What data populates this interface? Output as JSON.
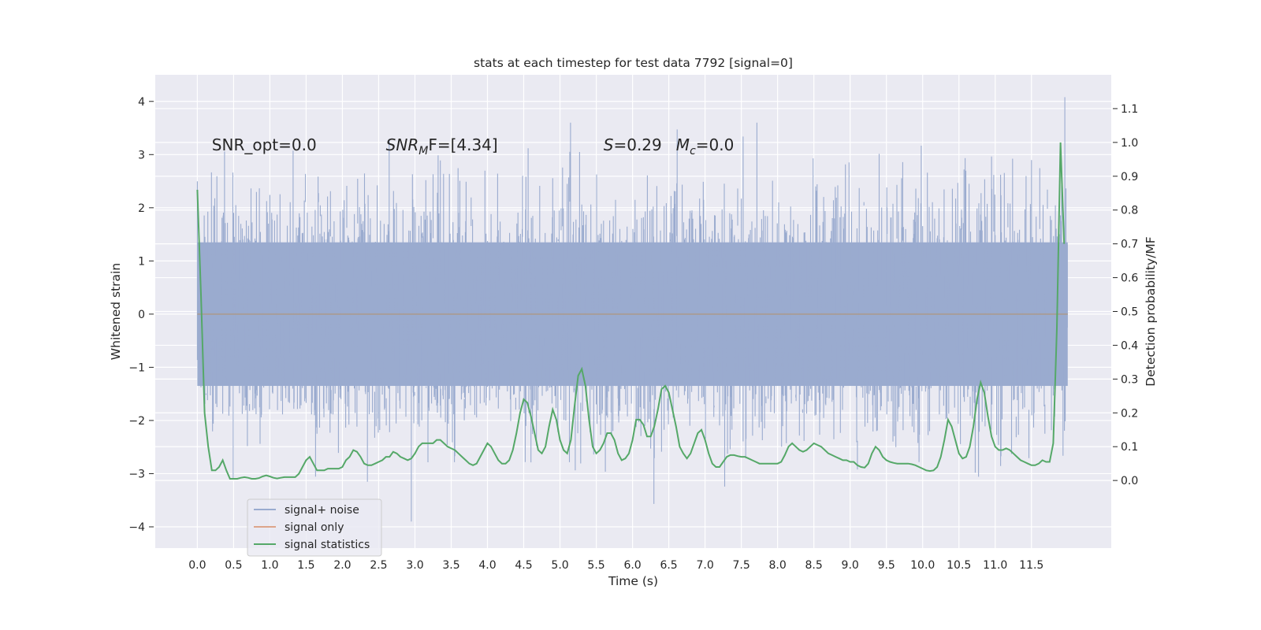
{
  "chart_data": {
    "type": "line",
    "title": "stats at each timestep for test data 7792 [signal=0]",
    "xlabel": "Time (s)",
    "ylabel": "Whitened strain",
    "ylabel_right": "Detection probability/MF",
    "xlim": [
      -0.58,
      12.6
    ],
    "ylim": [
      -4.4,
      4.5
    ],
    "ylim_right": [
      -0.2,
      1.2
    ],
    "x_ticks": [
      "0.0",
      "0.5",
      "1.0",
      "1.5",
      "2.0",
      "2.5",
      "3.0",
      "3.5",
      "4.0",
      "4.5",
      "5.0",
      "5.5",
      "6.0",
      "6.5",
      "7.0",
      "7.5",
      "8.0",
      "8.5",
      "9.0",
      "9.5",
      "10.0",
      "10.5",
      "11.0",
      "11.5"
    ],
    "y_ticks": [
      "4",
      "3",
      "2",
      "1",
      "0",
      "−1",
      "−2",
      "−3",
      "−4"
    ],
    "y_ticks_right": [
      "1.1",
      "1.0",
      "0.9",
      "0.8",
      "0.7",
      "0.6",
      "0.5",
      "0.4",
      "0.3",
      "0.2",
      "0.1",
      "0.0"
    ],
    "grid": true,
    "legend_position": "lower-left",
    "annotations": [
      {
        "label": "SNR_opt=0.0",
        "x": 0.2,
        "y": 3.2
      },
      {
        "label": "SNR",
        "sub": "M",
        "suffix": "F=[4.34]",
        "x": 2.6,
        "y": 3.2
      },
      {
        "label": "S",
        "suffix": "=0.29",
        "x": 5.6,
        "y": 3.2
      },
      {
        "label": "M",
        "sub": "c",
        "suffix": "=0.0",
        "x": 6.6,
        "y": 3.2
      }
    ],
    "series": [
      {
        "name": "signal+ noise",
        "color": "#9aabcf",
        "kind": "noise",
        "t_start": 0.0,
        "t_end": 12.0,
        "peak_max": 4.08,
        "peak_min": -3.9
      },
      {
        "name": "signal only",
        "color": "#dda58a",
        "kind": "flat",
        "t_start": 0.0,
        "t_end": 12.0,
        "value": 0.0
      },
      {
        "name": "signal statistics",
        "color": "#55a868",
        "axis": "right",
        "x": [
          0.0,
          0.05,
          0.1,
          0.15,
          0.2,
          0.25,
          0.3,
          0.35,
          0.4,
          0.45,
          0.5,
          0.55,
          0.6,
          0.65,
          0.7,
          0.75,
          0.8,
          0.85,
          0.9,
          0.95,
          1.0,
          1.05,
          1.1,
          1.15,
          1.2,
          1.25,
          1.3,
          1.35,
          1.4,
          1.45,
          1.5,
          1.55,
          1.6,
          1.65,
          1.7,
          1.75,
          1.8,
          1.85,
          1.9,
          1.95,
          2.0,
          2.05,
          2.1,
          2.15,
          2.2,
          2.25,
          2.3,
          2.35,
          2.4,
          2.45,
          2.5,
          2.55,
          2.6,
          2.65,
          2.7,
          2.75,
          2.8,
          2.85,
          2.9,
          2.95,
          3.0,
          3.05,
          3.1,
          3.15,
          3.2,
          3.25,
          3.3,
          3.35,
          3.4,
          3.45,
          3.5,
          3.55,
          3.6,
          3.65,
          3.7,
          3.75,
          3.8,
          3.85,
          3.9,
          3.95,
          4.0,
          4.05,
          4.1,
          4.15,
          4.2,
          4.25,
          4.3,
          4.35,
          4.4,
          4.45,
          4.5,
          4.55,
          4.6,
          4.65,
          4.7,
          4.75,
          4.8,
          4.85,
          4.9,
          4.95,
          5.0,
          5.05,
          5.1,
          5.15,
          5.2,
          5.25,
          5.3,
          5.35,
          5.4,
          5.45,
          5.5,
          5.55,
          5.6,
          5.65,
          5.7,
          5.75,
          5.8,
          5.85,
          5.9,
          5.95,
          6.0,
          6.05,
          6.1,
          6.15,
          6.2,
          6.25,
          6.3,
          6.35,
          6.4,
          6.45,
          6.5,
          6.55,
          6.6,
          6.65,
          6.7,
          6.75,
          6.8,
          6.85,
          6.9,
          6.95,
          7.0,
          7.05,
          7.1,
          7.15,
          7.2,
          7.25,
          7.3,
          7.35,
          7.4,
          7.45,
          7.5,
          7.55,
          7.6,
          7.65,
          7.7,
          7.75,
          7.8,
          7.85,
          7.9,
          7.95,
          8.0,
          8.05,
          8.1,
          8.15,
          8.2,
          8.25,
          8.3,
          8.35,
          8.4,
          8.45,
          8.5,
          8.55,
          8.6,
          8.65,
          8.7,
          8.75,
          8.8,
          8.85,
          8.9,
          8.95,
          9.0,
          9.05,
          9.1,
          9.15,
          9.2,
          9.25,
          9.3,
          9.35,
          9.4,
          9.45,
          9.5,
          9.55,
          9.6,
          9.65,
          9.7,
          9.75,
          9.8,
          9.85,
          9.9,
          9.95,
          10.0,
          10.05,
          10.1,
          10.15,
          10.2,
          10.25,
          10.3,
          10.35,
          10.4,
          10.45,
          10.5,
          10.55,
          10.6,
          10.65,
          10.7,
          10.75,
          10.8,
          10.85,
          10.9,
          10.95,
          11.0,
          11.05,
          11.1,
          11.15,
          11.2,
          11.25,
          11.3,
          11.35,
          11.4,
          11.45,
          11.5,
          11.55,
          11.6,
          11.65,
          11.7,
          11.75,
          11.8,
          11.85,
          11.9,
          11.95
        ],
        "values": [
          0.86,
          0.55,
          0.2,
          0.1,
          0.03,
          0.03,
          0.04,
          0.06,
          0.03,
          0.005,
          0.005,
          0.005,
          0.008,
          0.01,
          0.008,
          0.005,
          0.005,
          0.007,
          0.012,
          0.015,
          0.012,
          0.008,
          0.006,
          0.008,
          0.01,
          0.01,
          0.01,
          0.01,
          0.02,
          0.04,
          0.06,
          0.07,
          0.05,
          0.03,
          0.03,
          0.03,
          0.035,
          0.035,
          0.035,
          0.035,
          0.04,
          0.06,
          0.07,
          0.09,
          0.085,
          0.07,
          0.05,
          0.045,
          0.045,
          0.05,
          0.055,
          0.06,
          0.07,
          0.07,
          0.085,
          0.08,
          0.07,
          0.065,
          0.06,
          0.065,
          0.08,
          0.1,
          0.11,
          0.11,
          0.11,
          0.11,
          0.12,
          0.12,
          0.11,
          0.1,
          0.095,
          0.09,
          0.08,
          0.07,
          0.06,
          0.05,
          0.045,
          0.05,
          0.07,
          0.09,
          0.11,
          0.1,
          0.08,
          0.06,
          0.05,
          0.05,
          0.06,
          0.09,
          0.14,
          0.2,
          0.24,
          0.23,
          0.19,
          0.14,
          0.09,
          0.08,
          0.1,
          0.16,
          0.21,
          0.18,
          0.12,
          0.09,
          0.08,
          0.12,
          0.22,
          0.31,
          0.33,
          0.28,
          0.18,
          0.1,
          0.08,
          0.09,
          0.11,
          0.14,
          0.14,
          0.12,
          0.08,
          0.06,
          0.065,
          0.08,
          0.12,
          0.18,
          0.18,
          0.165,
          0.13,
          0.13,
          0.16,
          0.21,
          0.27,
          0.28,
          0.26,
          0.21,
          0.16,
          0.1,
          0.08,
          0.065,
          0.08,
          0.11,
          0.14,
          0.15,
          0.12,
          0.08,
          0.05,
          0.04,
          0.04,
          0.055,
          0.07,
          0.075,
          0.075,
          0.072,
          0.07,
          0.07,
          0.065,
          0.06,
          0.055,
          0.05,
          0.05,
          0.05,
          0.05,
          0.05,
          0.05,
          0.055,
          0.075,
          0.1,
          0.11,
          0.1,
          0.09,
          0.085,
          0.09,
          0.1,
          0.11,
          0.105,
          0.1,
          0.09,
          0.08,
          0.075,
          0.07,
          0.065,
          0.06,
          0.06,
          0.055,
          0.055,
          0.045,
          0.04,
          0.038,
          0.05,
          0.08,
          0.1,
          0.09,
          0.07,
          0.06,
          0.055,
          0.052,
          0.05,
          0.05,
          0.05,
          0.05,
          0.048,
          0.045,
          0.04,
          0.035,
          0.03,
          0.028,
          0.03,
          0.04,
          0.07,
          0.12,
          0.18,
          0.16,
          0.12,
          0.08,
          0.065,
          0.07,
          0.1,
          0.16,
          0.24,
          0.29,
          0.26,
          0.19,
          0.13,
          0.1,
          0.09,
          0.09,
          0.095,
          0.09,
          0.08,
          0.07,
          0.06,
          0.055,
          0.05,
          0.045,
          0.045,
          0.05,
          0.06,
          0.055,
          0.055,
          0.11,
          0.45,
          1.0,
          0.7
        ]
      }
    ]
  }
}
